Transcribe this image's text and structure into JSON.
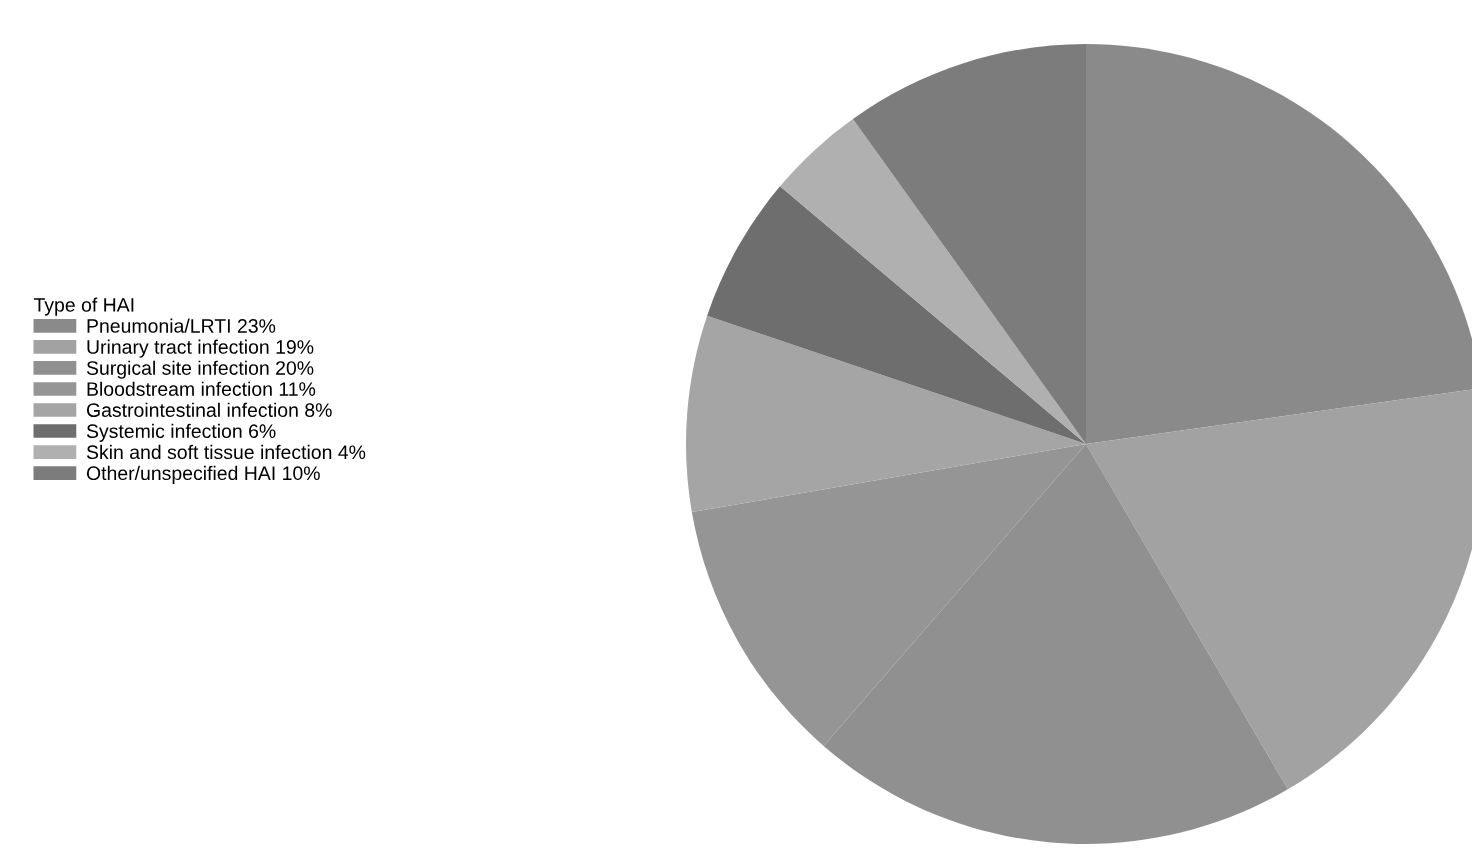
{
  "chart_data": {
    "type": "pie",
    "legend_title": "Type of HAI",
    "legend": "left",
    "categories": [
      "Pneumonia/LRTI 23%",
      "Urinary tract infection 19%",
      "Surgical site infection 20%",
      "Bloodstream infection 11%",
      "Gastrointestinal infection 8%",
      "Systemic infection 6%",
      "Skin and soft tissue infection 4%",
      "Other/unspecified HAI 10%"
    ],
    "values": [
      23,
      19,
      20,
      11,
      8,
      6,
      4,
      10
    ],
    "colors": [
      "#8a8a8a",
      "#a2a2a2",
      "#909090",
      "#959595",
      "#a5a5a5",
      "#6e6e6e",
      "#b0b0b0",
      "#7c7c7c"
    ]
  }
}
